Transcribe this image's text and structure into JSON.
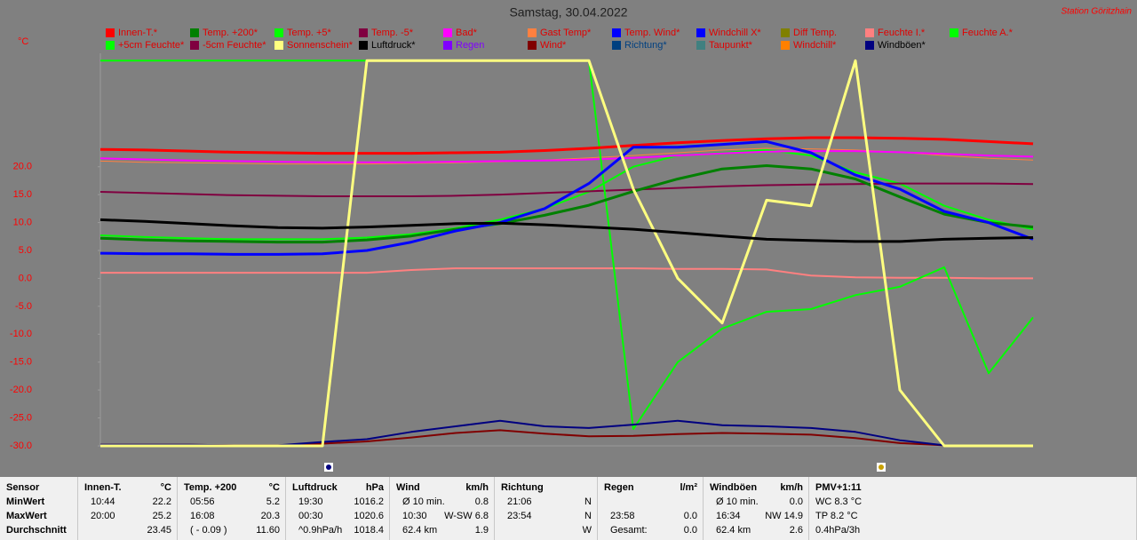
{
  "chart_data": {
    "type": "line",
    "title": "Samstag, 30.04.2022",
    "station": "Station Göritzhain",
    "unit": "°C",
    "ylim": [
      -30,
      40
    ],
    "yticks": [
      {
        "value": 20,
        "label": "20.0"
      },
      {
        "value": 15,
        "label": "15.0"
      },
      {
        "value": 10,
        "label": "10.0"
      },
      {
        "value": 5,
        "label": "5.0"
      },
      {
        "value": 0,
        "label": "0.0"
      },
      {
        "value": -5,
        "label": "-5.0"
      },
      {
        "value": -10,
        "label": "-10.0"
      },
      {
        "value": -15,
        "label": "-15.0"
      },
      {
        "value": -20,
        "label": "-20.0"
      },
      {
        "value": -25,
        "label": "-25.0"
      },
      {
        "value": -30,
        "label": "-30.0"
      }
    ],
    "grid": false,
    "categories": [
      null,
      null,
      null,
      null,
      null,
      null,
      null,
      null,
      null,
      null,
      null,
      null,
      null,
      null,
      null,
      null,
      null,
      null,
      null,
      null,
      null,
      null
    ],
    "series": [
      {
        "name": "Innen-T.*",
        "color": "#ff0000",
        "label_color": "#e00000",
        "width": 3,
        "values": [
          23.1,
          23.0,
          22.8,
          22.6,
          22.5,
          22.4,
          22.4,
          22.4,
          22.5,
          22.6,
          22.9,
          23.3,
          23.8,
          24.3,
          24.7,
          25.0,
          25.2,
          25.2,
          25.1,
          24.9,
          24.5,
          24.1
        ]
      },
      {
        "name": "Temp. +200*",
        "color": "#008000",
        "label_color": "#e00000",
        "width": 3,
        "values": [
          7.2,
          6.9,
          6.7,
          6.6,
          6.5,
          6.5,
          6.9,
          7.6,
          8.8,
          9.8,
          11.3,
          13.1,
          15.6,
          17.8,
          19.6,
          20.2,
          19.6,
          17.8,
          14.6,
          11.5,
          10.0,
          9.2
        ]
      },
      {
        "name": "Temp. +5*",
        "color": "#00ff00",
        "label_color": "#e00000",
        "width": 2,
        "values": [
          7.7,
          7.4,
          7.2,
          7.0,
          7.0,
          7.0,
          7.3,
          7.9,
          9.0,
          10.5,
          12.5,
          15.5,
          20.0,
          22.0,
          22.5,
          23.0,
          22.0,
          19.0,
          17.0,
          13.0,
          10.5,
          8.8
        ]
      },
      {
        "name": "Temp. -5*",
        "color": "#800040",
        "label_color": "#e00000",
        "width": 2,
        "values": [
          15.5,
          15.3,
          15.1,
          14.9,
          14.8,
          14.7,
          14.7,
          14.7,
          14.8,
          15.0,
          15.3,
          15.6,
          15.9,
          16.2,
          16.5,
          16.7,
          16.8,
          16.9,
          17.0,
          17.0,
          17.0,
          16.9
        ]
      },
      {
        "name": "Bad*",
        "color": "#ff00ff",
        "label_color": "#e00000",
        "width": 2,
        "values": [
          21.5,
          21.3,
          21.1,
          21.0,
          20.9,
          20.8,
          20.8,
          20.8,
          20.9,
          21.0,
          21.1,
          21.3,
          21.6,
          22.0,
          22.4,
          22.7,
          22.8,
          22.8,
          22.6,
          22.3,
          22.0,
          21.8
        ]
      },
      {
        "name": "Gast Temp*",
        "color": "#ff8040",
        "label_color": "#e00000",
        "width": 1,
        "values": [
          21.0,
          20.8,
          20.7,
          20.6,
          20.5,
          20.5,
          20.5,
          20.6,
          20.7,
          20.9,
          21.2,
          21.6,
          22.0,
          22.5,
          23.0,
          23.3,
          23.2,
          23.0,
          22.6,
          22.0,
          21.5,
          21.2
        ]
      },
      {
        "name": "Temp. Wind*",
        "color": "#0000ff",
        "label_color": "#e00000",
        "width": 3,
        "values": [
          4.5,
          4.4,
          4.4,
          4.3,
          4.3,
          4.4,
          5.0,
          6.5,
          8.5,
          10.0,
          12.5,
          17.0,
          23.5,
          23.5,
          24.0,
          24.5,
          22.5,
          18.5,
          16.0,
          12.0,
          10.0,
          7.0
        ]
      },
      {
        "name": "Windchill X*",
        "color": "#0000ff",
        "label_color": "#e00000"
      },
      {
        "name": "Diff Temp.",
        "color": "#808000",
        "label_color": "#e00000"
      },
      {
        "name": "Feuchte I.*",
        "color": "#ff8080",
        "label_color": "#e00000",
        "width": 2,
        "values": [
          1.0,
          1.0,
          1.0,
          1.0,
          1.0,
          1.0,
          1.0,
          1.5,
          1.8,
          1.8,
          1.8,
          1.8,
          1.8,
          1.7,
          1.7,
          1.6,
          0.5,
          0.2,
          0.1,
          0.1,
          0.0,
          0.0
        ]
      },
      {
        "name": "Feuchte A.*",
        "color": "#00ff00",
        "label_color": "#e00000",
        "width": 2,
        "values": [
          39,
          39,
          39,
          39,
          39,
          39,
          39,
          39,
          39,
          39,
          39,
          39,
          -27,
          -15,
          -9,
          -6,
          -5.5,
          -3,
          -1.5,
          2,
          -17,
          -7
        ]
      },
      {
        "name": "+5cm Feuchte*",
        "color": "#00ff00",
        "label_color": "#e00000"
      },
      {
        "name": "-5cm Feuchte*",
        "color": "#800040",
        "label_color": "#e00000"
      },
      {
        "name": "Sonnenschein*",
        "color": "#ffff80",
        "label_color": "#e00000",
        "width": 3,
        "values": [
          -30,
          -30,
          -30,
          -30,
          -30,
          -30,
          39,
          39,
          39,
          39,
          39,
          39,
          16,
          0,
          -8,
          14,
          13,
          39,
          -20,
          -30,
          -30,
          -30
        ]
      },
      {
        "name": "Luftdruck*",
        "color": "#000000",
        "label_color": "#000000",
        "width": 3,
        "values": [
          10.5,
          10.2,
          9.8,
          9.4,
          9.1,
          9.0,
          9.2,
          9.5,
          9.8,
          9.9,
          9.6,
          9.2,
          8.8,
          8.2,
          7.6,
          7.0,
          6.8,
          6.6,
          6.6,
          7.0,
          7.2,
          7.3
        ]
      },
      {
        "name": "Regen",
        "color": "#8000ff",
        "label_color": "#8000ff"
      },
      {
        "name": "Wind*",
        "color": "#800000",
        "label_color": "#e00000",
        "width": 2,
        "values": [
          -29.8,
          -29.8,
          -29.8,
          -29.9,
          -29.9,
          -29.6,
          -29.2,
          -28.5,
          -27.7,
          -27.2,
          -27.8,
          -28.3,
          -28.2,
          -27.9,
          -27.7,
          -27.8,
          -28.0,
          -28.6,
          -29.5,
          -29.9,
          -30.0,
          -30.0
        ]
      },
      {
        "name": "Richtung*",
        "color": "#004080",
        "label_color": "#004080"
      },
      {
        "name": "Taupunkt*",
        "color": "#408080",
        "label_color": "#e00000"
      },
      {
        "name": "Windchill*",
        "color": "#ff8000",
        "label_color": "#e00000"
      },
      {
        "name": "Windböen*",
        "color": "#000080",
        "label_color": "#000000",
        "width": 2,
        "values": [
          -29.8,
          -29.8,
          -29.8,
          -29.9,
          -29.9,
          -29.3,
          -28.8,
          -27.5,
          -26.5,
          -25.5,
          -26.5,
          -26.8,
          -26.2,
          -25.5,
          -26.3,
          -26.5,
          -26.8,
          -27.5,
          -29.0,
          -29.9,
          -30.0,
          -30.0
        ]
      }
    ]
  },
  "table": {
    "columns": [
      {
        "title": "Sensor",
        "rows": [
          "MinWert",
          "MaxWert",
          "Durchschnitt"
        ]
      },
      {
        "title": "Innen-T.",
        "unit": "°C",
        "rows": [
          [
            "10:44",
            "22.2"
          ],
          [
            "20:00",
            "25.2"
          ],
          [
            null,
            "23.45"
          ]
        ]
      },
      {
        "title": "Temp. +200",
        "unit": "°C",
        "rows": [
          [
            "05:56",
            "5.2"
          ],
          [
            "16:08",
            "20.3"
          ],
          [
            "( - 0.09 )",
            "11.60"
          ]
        ]
      },
      {
        "title": "Luftdruck",
        "unit": "hPa",
        "rows": [
          [
            "19:30",
            "1016.2"
          ],
          [
            "00:30",
            "1020.6"
          ],
          [
            "^0.9hPa/h",
            "1018.4"
          ]
        ]
      },
      {
        "title": "Wind",
        "unit": "km/h",
        "rows": [
          [
            "Ø 10 min.",
            "0.8"
          ],
          [
            "10:30",
            "W-SW 6.8"
          ],
          [
            "62.4 km",
            "1.9"
          ]
        ]
      },
      {
        "title": "Richtung",
        "rows": [
          [
            "21:06",
            "N"
          ],
          [
            "23:54",
            "N"
          ],
          [
            null,
            "W"
          ]
        ]
      },
      {
        "title": "Regen",
        "unit": "l/m²",
        "rows": [
          [
            null,
            null
          ],
          [
            "23:58",
            "0.0"
          ],
          [
            "Gesamt:",
            "0.0"
          ]
        ]
      },
      {
        "title": "Windböen",
        "unit": "km/h",
        "rows": [
          [
            "Ø 10 min.",
            "0.0"
          ],
          [
            "16:34",
            "NW 14.9"
          ],
          [
            "62.4 km",
            "2.6"
          ]
        ]
      },
      {
        "title": "PMV+1:11",
        "rows": [
          "WC 8.3 °C",
          "TP 8.2 °C",
          "0.4hPa/3h"
        ]
      }
    ]
  }
}
